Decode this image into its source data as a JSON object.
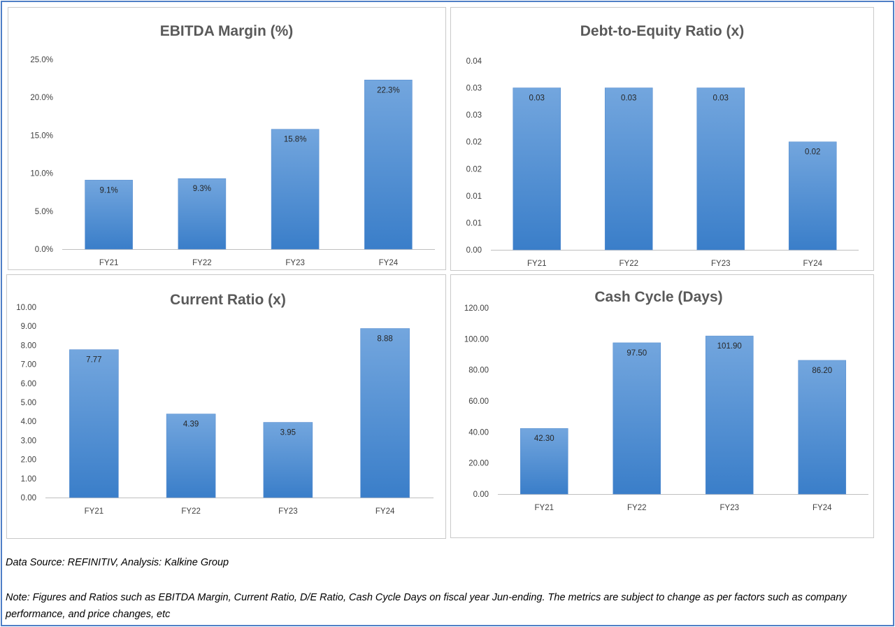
{
  "colors": {
    "bar_top": "#73a6de",
    "bar_bottom": "#3a7ec9",
    "frame": "#4f7fc6",
    "axis": "#bfbfbf"
  },
  "footer": {
    "source": "Data Source: REFINITIV, Analysis: Kalkine Group",
    "note": "Note: Figures and Ratios such as EBITDA Margin, Current Ratio, D/E Ratio, Cash Cycle Days on fiscal year Jun-ending. The metrics are subject to change as per factors such as company performance, and price changes, etc"
  },
  "chart_data": [
    {
      "id": "ebitda",
      "type": "bar",
      "title": "EBITDA Margin (%)",
      "categories": [
        "FY21",
        "FY22",
        "FY23",
        "FY24"
      ],
      "values": [
        9.1,
        9.3,
        15.8,
        22.3
      ],
      "value_labels": [
        "9.1%",
        "9.3%",
        "15.8%",
        "22.3%"
      ],
      "yticks": [
        "0.0%",
        "5.0%",
        "10.0%",
        "15.0%",
        "20.0%",
        "25.0%"
      ],
      "ylim": [
        0,
        25
      ],
      "grid": false
    },
    {
      "id": "de",
      "type": "bar",
      "title": "Debt-to-Equity Ratio (x)",
      "categories": [
        "FY21",
        "FY22",
        "FY23",
        "FY24"
      ],
      "values": [
        0.03,
        0.03,
        0.03,
        0.02
      ],
      "value_labels": [
        "0.03",
        "0.03",
        "0.03",
        "0.02"
      ],
      "yticks": [
        "0.00",
        "0.01",
        "0.01",
        "0.02",
        "0.02",
        "0.03",
        "0.03",
        "0.04"
      ],
      "ylim": [
        0,
        0.035
      ],
      "grid": false
    },
    {
      "id": "current",
      "type": "bar",
      "title": "Current Ratio (x)",
      "categories": [
        "FY21",
        "FY22",
        "FY23",
        "FY24"
      ],
      "values": [
        7.77,
        4.39,
        3.95,
        8.88
      ],
      "value_labels": [
        "7.77",
        "4.39",
        "3.95",
        "8.88"
      ],
      "yticks": [
        "0.00",
        "1.00",
        "2.00",
        "3.00",
        "4.00",
        "5.00",
        "6.00",
        "7.00",
        "8.00",
        "9.00",
        "10.00"
      ],
      "ylim": [
        0,
        10
      ],
      "grid": false
    },
    {
      "id": "cash",
      "type": "bar",
      "title": "Cash Cycle (Days)",
      "categories": [
        "FY21",
        "FY22",
        "FY23",
        "FY24"
      ],
      "values": [
        42.3,
        97.5,
        101.9,
        86.2
      ],
      "value_labels": [
        "42.30",
        "97.50",
        "101.90",
        "86.20"
      ],
      "yticks": [
        "0.00",
        "20.00",
        "40.00",
        "60.00",
        "80.00",
        "100.00",
        "120.00"
      ],
      "ylim": [
        0,
        120
      ],
      "grid": false
    }
  ]
}
